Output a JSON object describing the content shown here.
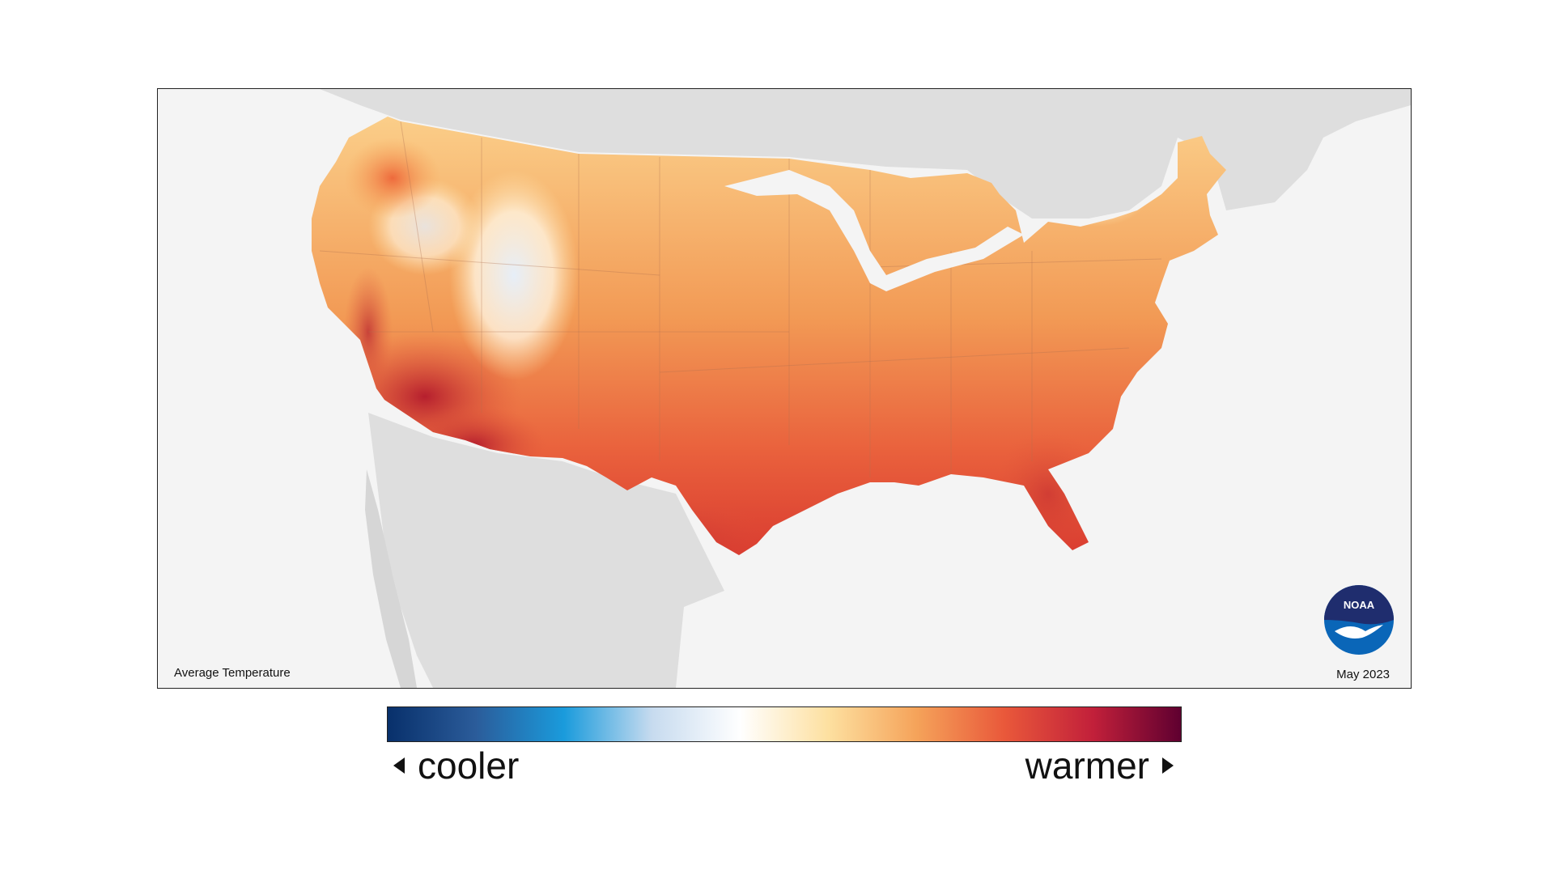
{
  "map": {
    "caption_left": "Average Temperature",
    "caption_right": "May 2023",
    "logo_text": "NOAA",
    "logo_icon": "noaa-bird-logo-icon"
  },
  "legend": {
    "left_label": "cooler",
    "right_label": "warmer",
    "left_icon": "triangle-left-icon",
    "right_icon": "triangle-right-icon",
    "colors": [
      "#08306b",
      "#2b5c9a",
      "#1a9bdc",
      "#c7dbef",
      "#ffffff",
      "#fde0a0",
      "#f5a35a",
      "#e9583a",
      "#c2203a",
      "#5f0030"
    ]
  },
  "colors": {
    "land_background": "#dddddd",
    "ocean_background": "#f4f4f4",
    "logo_blue": "#0a66b8",
    "logo_navy": "#1f2d6e"
  }
}
